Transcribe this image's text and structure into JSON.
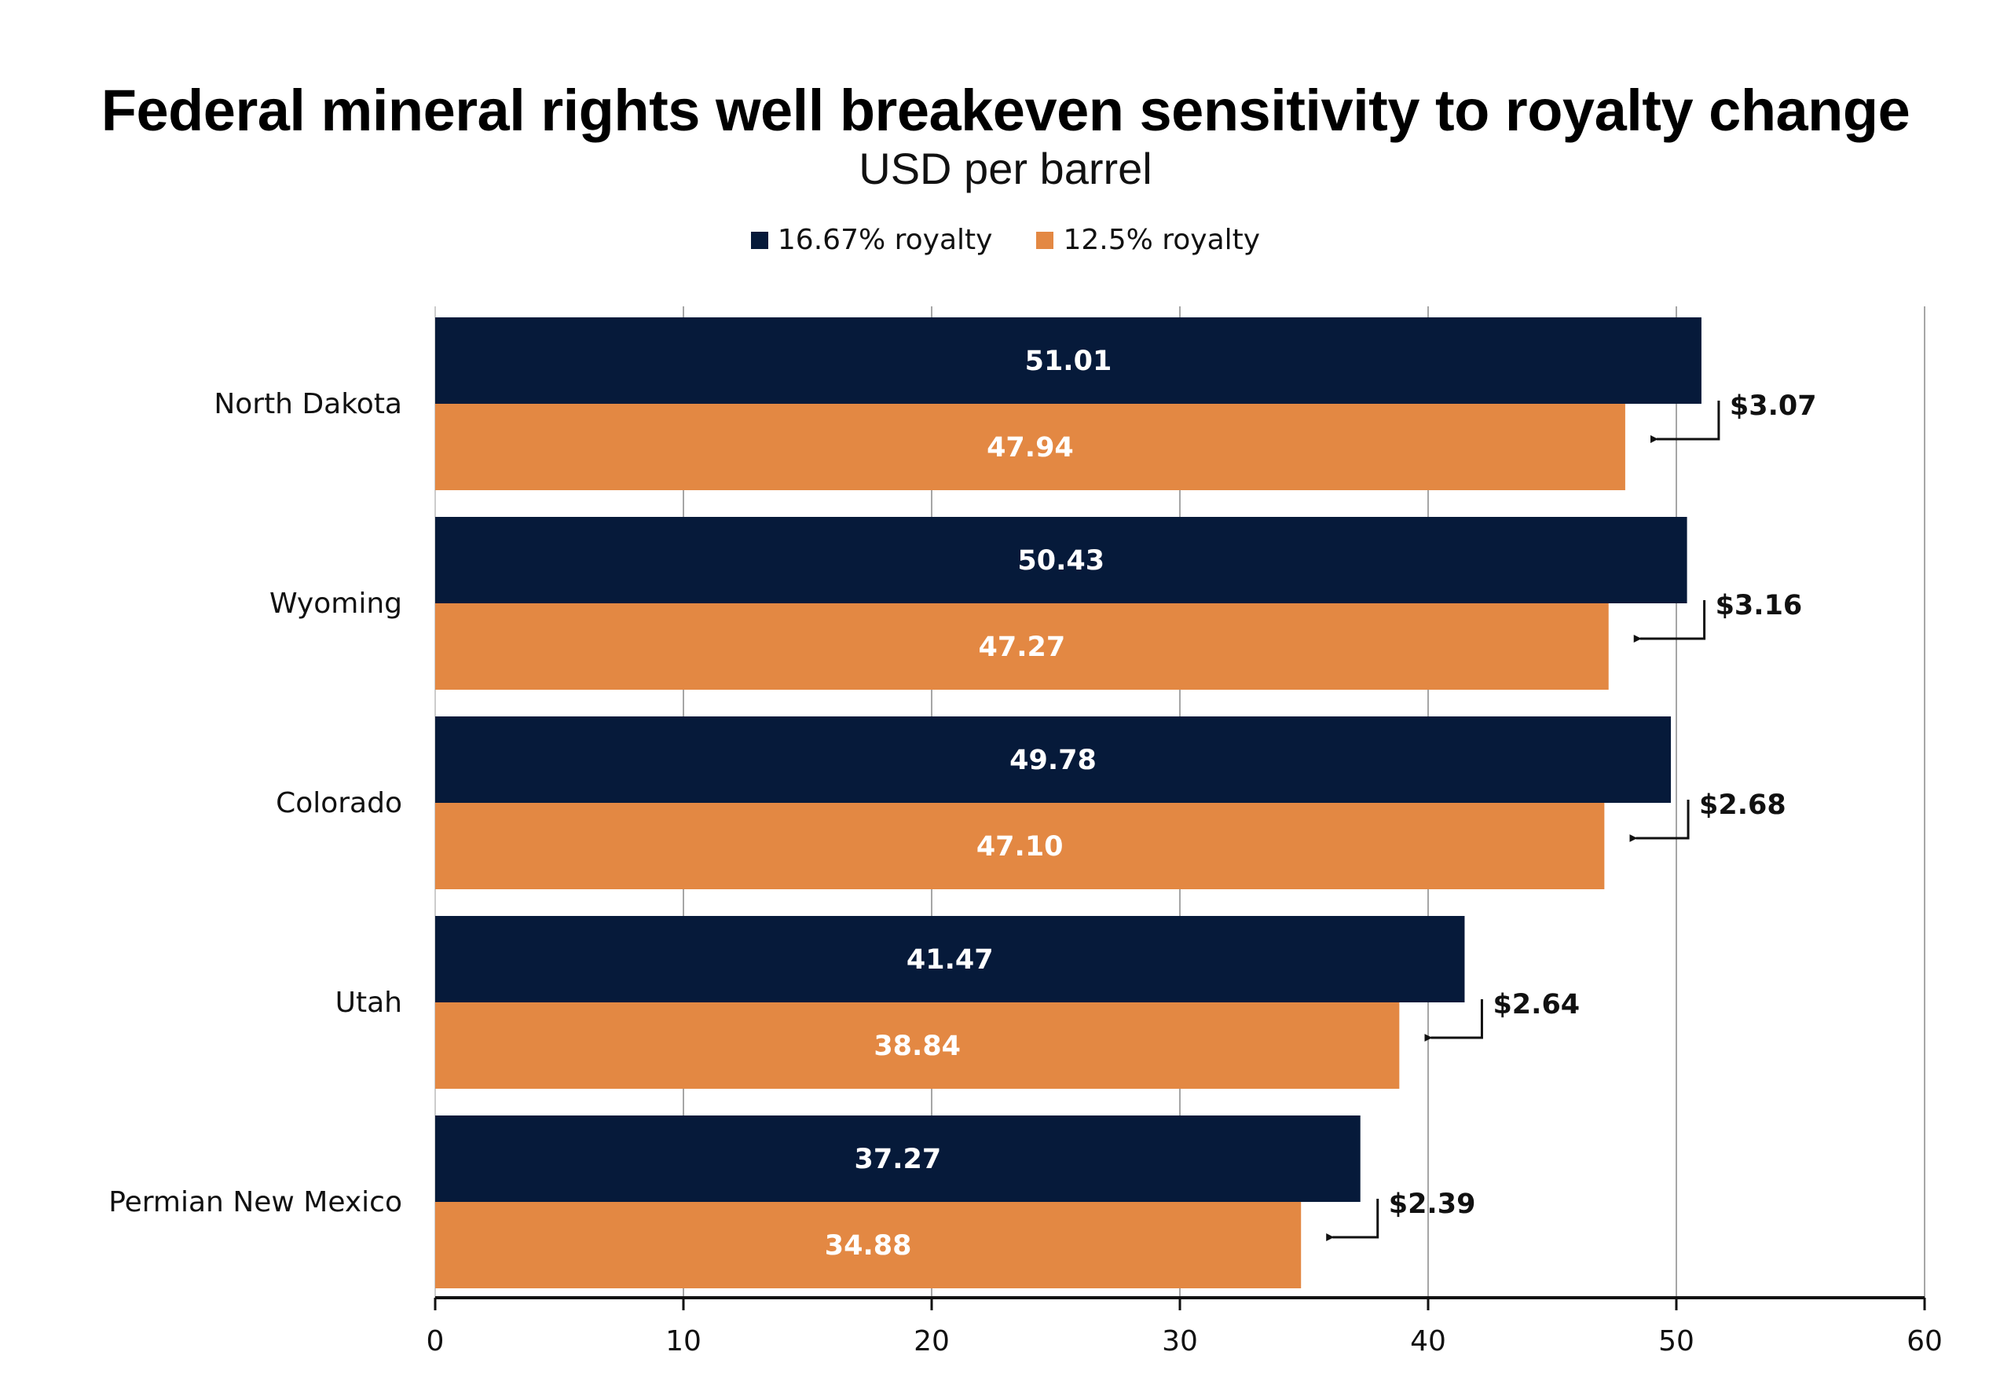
{
  "colors": {
    "series_16_67": "#061a3a",
    "series_12_5": "#e38843",
    "gridline": "#a6a6a6",
    "axis": "#111111",
    "annotation": "#111111"
  },
  "chart_data": {
    "type": "bar",
    "orientation": "horizontal",
    "title": "Federal mineral rights well breakeven sensitivity to royalty change",
    "subtitle": "USD per barrel",
    "xlabel": "",
    "ylabel": "",
    "xlim": [
      0,
      60
    ],
    "x_ticks": [
      0,
      10,
      20,
      30,
      40,
      50,
      60
    ],
    "x_tick_labels": [
      "0",
      "10",
      "20",
      "30",
      "40",
      "50",
      "60"
    ],
    "grid": "vertical",
    "legend_position": "top-center",
    "categories": [
      "North Dakota",
      "Wyoming",
      "Colorado",
      "Utah",
      "Permian New Mexico"
    ],
    "series": [
      {
        "name": "16.67% royalty",
        "values": [
          51.01,
          50.43,
          49.78,
          41.47,
          37.27
        ],
        "labels": [
          "51.01",
          "50.43",
          "49.78",
          "41.47",
          "37.27"
        ]
      },
      {
        "name": "12.5% royalty",
        "values": [
          47.94,
          47.27,
          47.1,
          38.84,
          34.88
        ],
        "labels": [
          "47.94",
          "47.27",
          "47.10",
          "38.84",
          "34.88"
        ]
      }
    ],
    "annotations": {
      "type": "difference-arrows",
      "labels": [
        "$3.07",
        "$3.16",
        "$2.68",
        "$2.64",
        "$2.39"
      ]
    }
  }
}
